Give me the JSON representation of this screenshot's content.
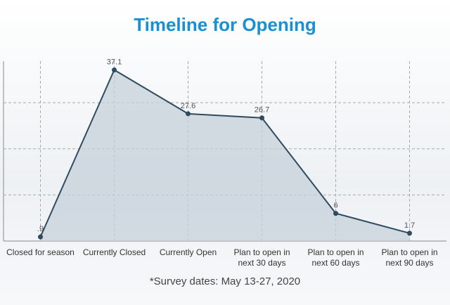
{
  "chart_data": {
    "type": "area",
    "title": "Timeline for Opening",
    "categories": [
      "Closed for season",
      "Currently Closed",
      "Currently Open",
      "Plan to open in next 30 days",
      "Plan to open in next 60 days",
      "Plan to open in next 90 days"
    ],
    "values": [
      0.9,
      37.1,
      27.6,
      26.7,
      6,
      1.7
    ],
    "value_labels": [
      ".9",
      "37.1",
      "27.6",
      "26.7",
      "6",
      "1.7"
    ],
    "color": "#2f4b60",
    "fill": "#c5d0d9",
    "ylim": [
      0,
      39
    ],
    "ygrid": [
      10,
      20,
      30
    ],
    "annotation": "*Survey dates: May 13-27, 2020"
  }
}
